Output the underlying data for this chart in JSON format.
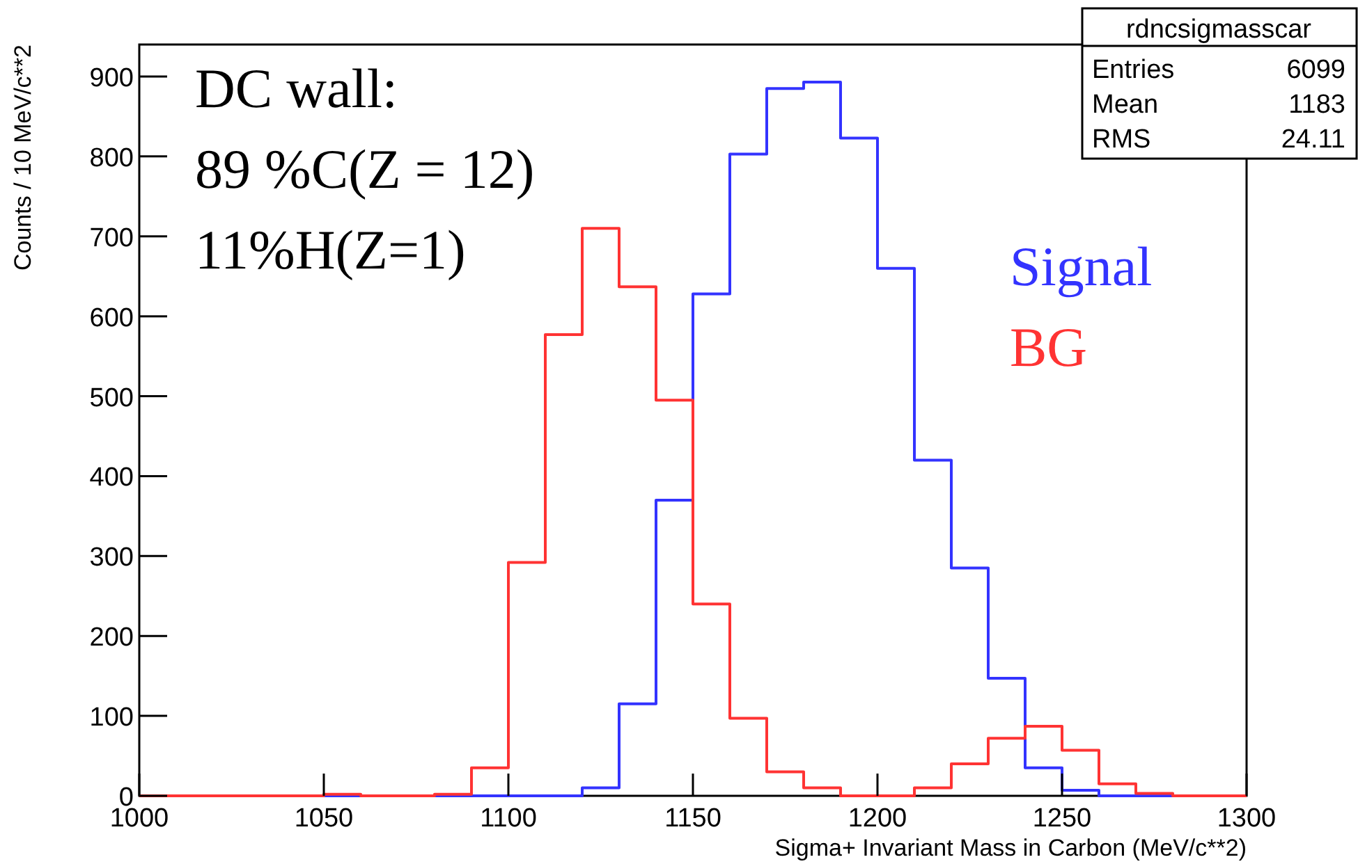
{
  "chart_data": {
    "type": "histogram",
    "xlabel": "Sigma+ Invariant Mass in Carbon (MeV/c**2)",
    "ylabel": "Counts /  10 MeV/c**2",
    "bins": [
      1000,
      1010,
      1020,
      1030,
      1040,
      1050,
      1060,
      1070,
      1080,
      1090,
      1100,
      1110,
      1120,
      1130,
      1140,
      1150,
      1160,
      1170,
      1180,
      1190,
      1200,
      1210,
      1220,
      1230,
      1240,
      1250,
      1260,
      1270,
      1280,
      1290,
      1300
    ],
    "series": [
      {
        "name": "Signal",
        "color": "#3333ff",
        "values": [
          0,
          0,
          0,
          0,
          0,
          0,
          0,
          0,
          0,
          0,
          0,
          0,
          10,
          115,
          370,
          628,
          803,
          885,
          893,
          823,
          660,
          420,
          285,
          147,
          35,
          7,
          0,
          0,
          0,
          0
        ]
      },
      {
        "name": "BG",
        "color": "#ff3333",
        "values": [
          0,
          0,
          0,
          0,
          0,
          2,
          0,
          0,
          2,
          35,
          292,
          577,
          710,
          637,
          495,
          240,
          97,
          30,
          10,
          0,
          0,
          10,
          40,
          72,
          87,
          57,
          15,
          3,
          0,
          0
        ]
      }
    ],
    "xlim": [
      1000,
      1300
    ],
    "xticks": [
      1000,
      1050,
      1100,
      1150,
      1200,
      1250,
      1300
    ],
    "ylim": [
      0,
      940
    ],
    "yticks": [
      0,
      100,
      200,
      300,
      400,
      500,
      600,
      700,
      800,
      900
    ],
    "legend": "top right",
    "grid": false,
    "annotations": [
      "DC wall:",
      "89 %C(Z = 12)",
      "11%H(Z=1)",
      "rdncsigmasscar",
      "Entries",
      "6099",
      "Mean",
      "1183",
      "RMS",
      "24.11"
    ]
  }
}
